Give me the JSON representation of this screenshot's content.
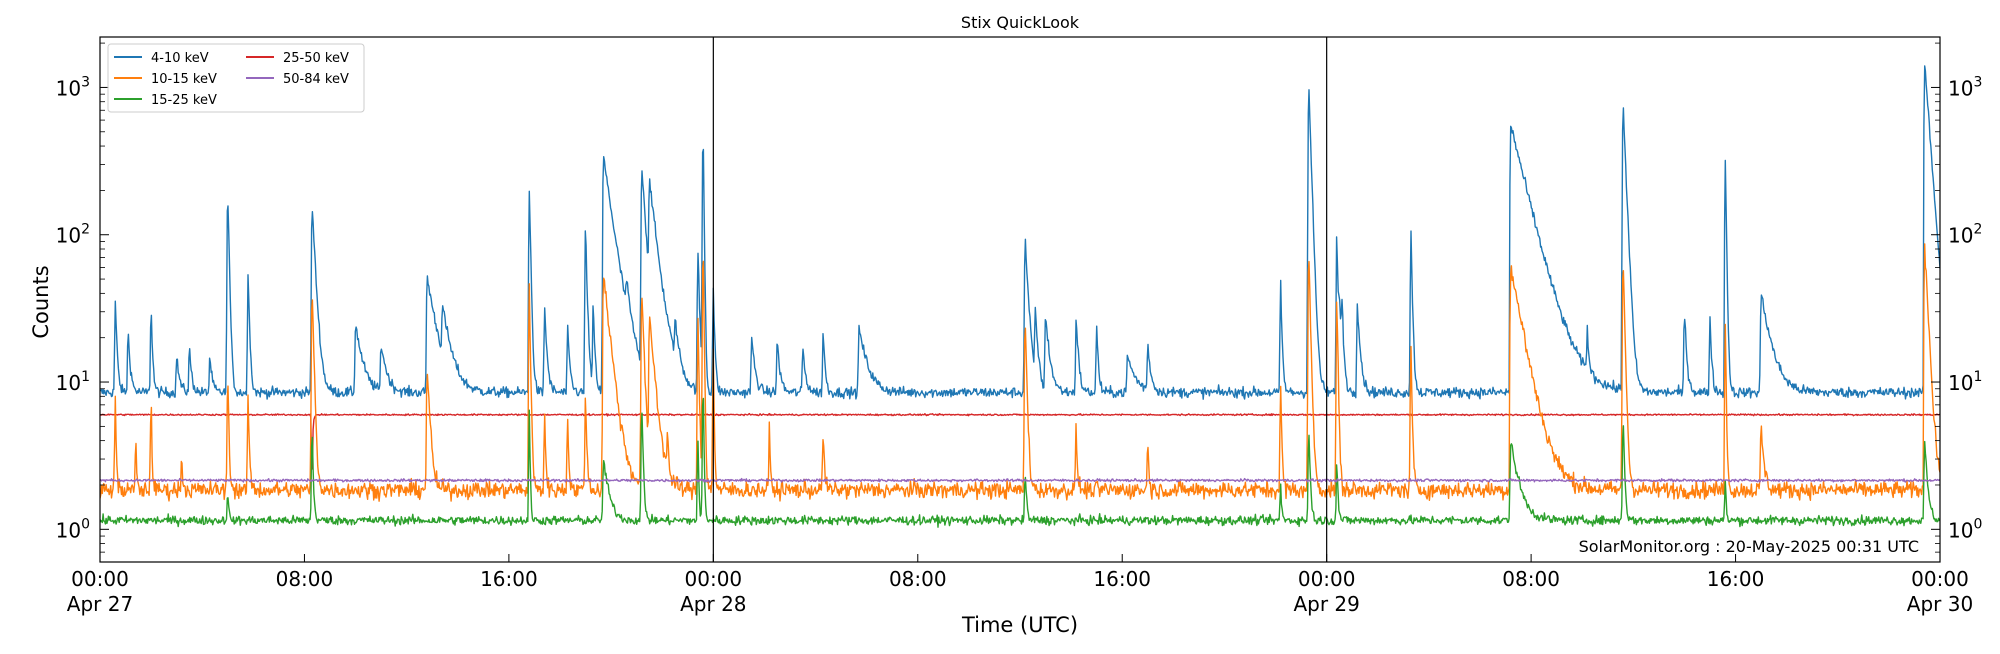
{
  "chart_data": {
    "type": "line",
    "title": "Stix QuickLook",
    "xlabel": "Time (UTC)",
    "ylabel": "Counts",
    "yscale": "log",
    "ylim": [
      0.6,
      2200
    ],
    "xlim_hours": [
      0,
      72
    ],
    "x_ticks": [
      {
        "hour": 0,
        "time": "00:00",
        "date": "Apr 27"
      },
      {
        "hour": 8,
        "time": "08:00",
        "date": ""
      },
      {
        "hour": 16,
        "time": "16:00",
        "date": ""
      },
      {
        "hour": 24,
        "time": "00:00",
        "date": "Apr 28"
      },
      {
        "hour": 32,
        "time": "08:00",
        "date": ""
      },
      {
        "hour": 40,
        "time": "16:00",
        "date": ""
      },
      {
        "hour": 48,
        "time": "00:00",
        "date": "Apr 29"
      },
      {
        "hour": 56,
        "time": "08:00",
        "date": ""
      },
      {
        "hour": 64,
        "time": "16:00",
        "date": ""
      },
      {
        "hour": 72,
        "time": "00:00",
        "date": "Apr 30"
      }
    ],
    "y_ticks": [
      {
        "value": 1,
        "base": "10",
        "exp": "0"
      },
      {
        "value": 10,
        "base": "10",
        "exp": "1"
      },
      {
        "value": 100,
        "base": "10",
        "exp": "2"
      },
      {
        "value": 1000,
        "base": "10",
        "exp": "3"
      }
    ],
    "day_boundaries_hours": [
      24,
      48
    ],
    "grid": false,
    "legend_position": "top-left",
    "annotation": "SolarMonitor.org : 20-May-2025 00:31 UTC",
    "series": [
      {
        "name": "4-10 keV",
        "color": "#1f77b4",
        "baseline": 8.5,
        "noise": 0.08,
        "peaks": [
          [
            0.6,
            35,
            0.06
          ],
          [
            1.1,
            22,
            0.08
          ],
          [
            2.0,
            33,
            0.05
          ],
          [
            3.0,
            15,
            0.1
          ],
          [
            3.5,
            17,
            0.08
          ],
          [
            4.3,
            15,
            0.08
          ],
          [
            5.0,
            210,
            0.05
          ],
          [
            5.8,
            58,
            0.05
          ],
          [
            8.3,
            160,
            0.12
          ],
          [
            10.0,
            25,
            0.25
          ],
          [
            11.0,
            18,
            0.2
          ],
          [
            12.8,
            52,
            0.35
          ],
          [
            13.4,
            25,
            0.3
          ],
          [
            16.8,
            205,
            0.05
          ],
          [
            17.4,
            32,
            0.08
          ],
          [
            18.3,
            22,
            0.08
          ],
          [
            19.0,
            110,
            0.06
          ],
          [
            19.3,
            32,
            0.06
          ],
          [
            19.7,
            340,
            0.35
          ],
          [
            20.6,
            25,
            0.15
          ],
          [
            21.2,
            300,
            0.15
          ],
          [
            21.5,
            200,
            0.3
          ],
          [
            22.5,
            20,
            0.15
          ],
          [
            23.4,
            75,
            0.06
          ],
          [
            23.6,
            540,
            0.03
          ],
          [
            24.0,
            43,
            0.05
          ],
          [
            25.5,
            20,
            0.12
          ],
          [
            26.5,
            19,
            0.1
          ],
          [
            27.5,
            17,
            0.1
          ],
          [
            28.3,
            23,
            0.06
          ],
          [
            29.7,
            23,
            0.3
          ],
          [
            36.2,
            95,
            0.12
          ],
          [
            36.6,
            28,
            0.1
          ],
          [
            37.0,
            28,
            0.15
          ],
          [
            38.2,
            28,
            0.08
          ],
          [
            39.0,
            24,
            0.06
          ],
          [
            40.2,
            15,
            0.3
          ],
          [
            41.0,
            18,
            0.1
          ],
          [
            46.2,
            45,
            0.05
          ],
          [
            47.3,
            1050,
            0.08
          ],
          [
            48.4,
            100,
            0.05
          ],
          [
            48.5,
            28,
            0.08
          ],
          [
            48.6,
            30,
            0.06
          ],
          [
            49.2,
            35,
            0.1
          ],
          [
            51.3,
            100,
            0.05
          ],
          [
            55.2,
            560,
            0.6
          ],
          [
            58.2,
            20,
            0.05
          ],
          [
            59.6,
            800,
            0.1
          ],
          [
            62.0,
            30,
            0.08
          ],
          [
            63.0,
            27,
            0.06
          ],
          [
            63.6,
            310,
            0.04
          ],
          [
            65.0,
            40,
            0.35
          ],
          [
            71.4,
            1480,
            0.18
          ]
        ]
      },
      {
        "name": "10-15 keV",
        "color": "#ff7f0e",
        "baseline": 1.85,
        "noise": 0.13,
        "peaks": [
          [
            0.6,
            8,
            0.03
          ],
          [
            1.4,
            4,
            0.03
          ],
          [
            2.0,
            8,
            0.03
          ],
          [
            3.2,
            3.5,
            0.03
          ],
          [
            5.0,
            11,
            0.04
          ],
          [
            5.8,
            8,
            0.04
          ],
          [
            8.3,
            45,
            0.06
          ],
          [
            12.8,
            13,
            0.1
          ],
          [
            16.8,
            45,
            0.04
          ],
          [
            17.4,
            6,
            0.04
          ],
          [
            18.3,
            6,
            0.04
          ],
          [
            19.0,
            9,
            0.04
          ],
          [
            19.7,
            55,
            0.25
          ],
          [
            21.2,
            45,
            0.08
          ],
          [
            21.5,
            28,
            0.2
          ],
          [
            22.2,
            4,
            0.04
          ],
          [
            23.4,
            28,
            0.04
          ],
          [
            23.6,
            95,
            0.03
          ],
          [
            24.0,
            16,
            0.03
          ],
          [
            26.2,
            5,
            0.03
          ],
          [
            28.3,
            5,
            0.04
          ],
          [
            36.2,
            28,
            0.06
          ],
          [
            38.2,
            5,
            0.04
          ],
          [
            41.0,
            4,
            0.04
          ],
          [
            46.2,
            9,
            0.04
          ],
          [
            47.3,
            78,
            0.06
          ],
          [
            48.4,
            38,
            0.04
          ],
          [
            51.3,
            17,
            0.04
          ],
          [
            55.2,
            62,
            0.45
          ],
          [
            59.6,
            72,
            0.06
          ],
          [
            63.6,
            27,
            0.03
          ],
          [
            65.0,
            5,
            0.1
          ],
          [
            71.4,
            90,
            0.12
          ]
        ]
      },
      {
        "name": "15-25 keV",
        "color": "#2ca02c",
        "baseline": 1.15,
        "noise": 0.07,
        "peaks": [
          [
            5.0,
            2,
            0.03
          ],
          [
            8.3,
            5,
            0.04
          ],
          [
            16.8,
            6,
            0.03
          ],
          [
            19.7,
            3,
            0.2
          ],
          [
            21.2,
            7,
            0.05
          ],
          [
            23.4,
            4,
            0.03
          ],
          [
            23.6,
            10,
            0.03
          ],
          [
            36.2,
            2.5,
            0.05
          ],
          [
            46.2,
            2,
            0.04
          ],
          [
            47.3,
            5,
            0.05
          ],
          [
            48.4,
            3,
            0.04
          ],
          [
            55.2,
            4,
            0.3
          ],
          [
            59.6,
            6,
            0.05
          ],
          [
            63.6,
            2.2,
            0.03
          ],
          [
            71.4,
            4,
            0.1
          ]
        ]
      },
      {
        "name": "25-50 keV",
        "color": "#d62728",
        "baseline": 6.0,
        "noise": 0.012,
        "peaks": [
          [
            8.3,
            1.2,
            0.03
          ]
        ]
      },
      {
        "name": "50-84 keV",
        "color": "#9467bd",
        "baseline": 2.15,
        "noise": 0.02,
        "peaks": []
      }
    ]
  }
}
